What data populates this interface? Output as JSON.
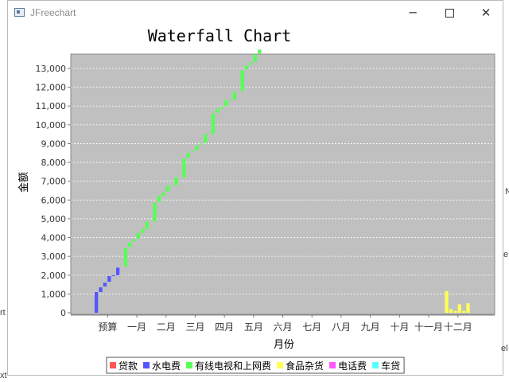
{
  "window": {
    "title": "JFreechart",
    "minimize_glyph": "─",
    "close_glyph": "✕"
  },
  "background_fragments": [
    "N",
    "e",
    "rt",
    "el",
    "xt"
  ],
  "chart_data": {
    "type": "bar",
    "subtype": "waterfall (stacked floating bars)",
    "title": "Waterfall Chart",
    "xlabel": "月份",
    "ylabel": "金额",
    "categories": [
      "预算",
      "一月",
      "二月",
      "三月",
      "四月",
      "五月",
      "六月",
      "七月",
      "八月",
      "九月",
      "十月",
      "十一月",
      "十二月"
    ],
    "ylim": [
      0,
      14000
    ],
    "yticks": [
      0,
      1000,
      2000,
      3000,
      4000,
      5000,
      6000,
      7000,
      8000,
      9000,
      10000,
      11000,
      12000,
      13000
    ],
    "ytick_labels": [
      "0",
      "1,000",
      "2,000",
      "3,000",
      "4,000",
      "5,000",
      "6,000",
      "7,000",
      "8,000",
      "9,000",
      "10,000",
      "11,000",
      "12,000",
      "13,000"
    ],
    "grid": true,
    "plot_background": "#c0c0c0",
    "legend_position": "bottom",
    "series": [
      {
        "name": "贷款",
        "color": "#ff5555",
        "bars": []
      },
      {
        "name": "水电费",
        "color": "#5555ff",
        "bars": [
          {
            "category": "预算",
            "slot": 0,
            "base": 0,
            "top": 1100
          },
          {
            "category": "预算",
            "slot": 1,
            "base": 1100,
            "top": 1350
          },
          {
            "category": "预算",
            "slot": 2,
            "base": 1400,
            "top": 1600
          },
          {
            "category": "预算",
            "slot": 3,
            "base": 1650,
            "top": 1950
          },
          {
            "category": "预算",
            "slot": 4,
            "base": 1950,
            "top": 2000
          },
          {
            "category": "预算",
            "slot": 5,
            "base": 2000,
            "top": 2400
          }
        ]
      },
      {
        "name": "有线电视和上网费",
        "color": "#55ff55",
        "bars": [
          {
            "category": "一月",
            "slot": 0,
            "base": 2450,
            "top": 3450
          },
          {
            "category": "一月",
            "slot": 1,
            "base": 3500,
            "top": 3750
          },
          {
            "category": "一月",
            "slot": 2,
            "base": 3800,
            "top": 3900
          },
          {
            "category": "一月",
            "slot": 3,
            "base": 3950,
            "top": 4250
          },
          {
            "category": "一月",
            "slot": 4,
            "base": 4250,
            "top": 4450
          },
          {
            "category": "一月",
            "slot": 5,
            "base": 4450,
            "top": 4850
          },
          {
            "category": "二月",
            "slot": 0,
            "base": 4850,
            "top": 5850
          },
          {
            "category": "二月",
            "slot": 1,
            "base": 5900,
            "top": 6200
          },
          {
            "category": "二月",
            "slot": 2,
            "base": 6200,
            "top": 6400
          },
          {
            "category": "二月",
            "slot": 3,
            "base": 6450,
            "top": 6750
          },
          {
            "category": "二月",
            "slot": 4,
            "base": 6750,
            "top": 6800
          },
          {
            "category": "二月",
            "slot": 5,
            "base": 6800,
            "top": 7200
          },
          {
            "category": "三月",
            "slot": 0,
            "base": 7200,
            "top": 8200
          },
          {
            "category": "三月",
            "slot": 1,
            "base": 8250,
            "top": 8500
          },
          {
            "category": "三月",
            "slot": 2,
            "base": 8550,
            "top": 8600
          },
          {
            "category": "三月",
            "slot": 3,
            "base": 8650,
            "top": 8900
          },
          {
            "category": "三月",
            "slot": 4,
            "base": 8950,
            "top": 9000
          },
          {
            "category": "三月",
            "slot": 5,
            "base": 9050,
            "top": 9500
          },
          {
            "category": "四月",
            "slot": 0,
            "base": 9500,
            "top": 10600
          },
          {
            "category": "四月",
            "slot": 1,
            "base": 10650,
            "top": 10850
          },
          {
            "category": "四月",
            "slot": 2,
            "base": 10850,
            "top": 10950
          },
          {
            "category": "四月",
            "slot": 3,
            "base": 11000,
            "top": 11300
          },
          {
            "category": "四月",
            "slot": 4,
            "base": 11300,
            "top": 11350
          },
          {
            "category": "四月",
            "slot": 5,
            "base": 11350,
            "top": 11750
          },
          {
            "category": "五月",
            "slot": 0,
            "base": 11800,
            "top": 12900
          },
          {
            "category": "五月",
            "slot": 1,
            "base": 12950,
            "top": 13150
          },
          {
            "category": "五月",
            "slot": 2,
            "base": 13200,
            "top": 13300
          },
          {
            "category": "五月",
            "slot": 3,
            "base": 13350,
            "top": 13750
          },
          {
            "category": "五月",
            "slot": 4,
            "base": 13800,
            "top": 14000
          }
        ]
      },
      {
        "name": "食品杂货",
        "color": "#ffff55",
        "bars": [
          {
            "category": "十二月",
            "slot": 0,
            "base": 0,
            "top": 1150
          },
          {
            "category": "十二月",
            "slot": 1,
            "base": 0,
            "top": 200
          },
          {
            "category": "十二月",
            "slot": 2,
            "base": 0,
            "top": 100
          },
          {
            "category": "十二月",
            "slot": 3,
            "base": 0,
            "top": 450
          },
          {
            "category": "十二月",
            "slot": 4,
            "base": 0,
            "top": 100
          },
          {
            "category": "十二月",
            "slot": 5,
            "base": 0,
            "top": 500
          }
        ]
      },
      {
        "name": "电话费",
        "color": "#ff55ff",
        "bars": []
      },
      {
        "name": "车贷",
        "color": "#55ffff",
        "bars": []
      }
    ]
  }
}
